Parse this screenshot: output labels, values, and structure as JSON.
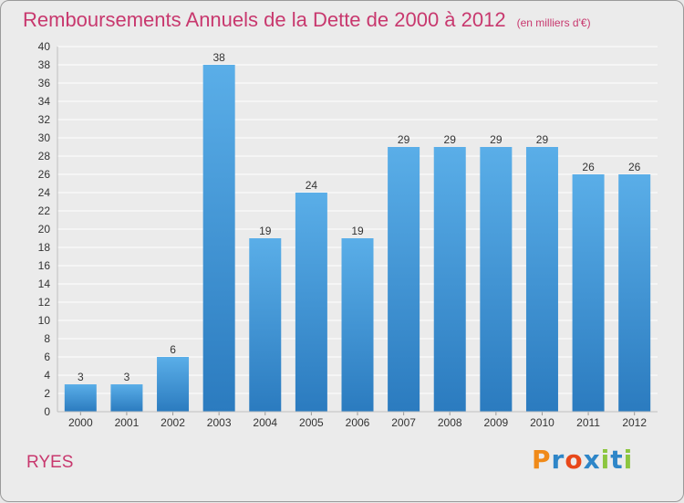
{
  "header": {
    "title": "Remboursements Annuels de la Dette de 2000 à 2012",
    "unit": "(en milliers d'€)"
  },
  "footer": {
    "commune": "RYES",
    "brand": {
      "text": "Proxiti",
      "letter_colors": [
        "#f08a18",
        "#2e86c8",
        "#e8481a",
        "#2e86c8",
        "#8cc63f",
        "#2e86c8",
        "#8cc63f"
      ]
    }
  },
  "colors": {
    "bar_top": "#5aaee8",
    "bar_bottom": "#2b7bbf",
    "grid": "#ffffff",
    "axis_text": "#333333",
    "title": "#c8386e"
  },
  "chart_data": {
    "type": "bar",
    "categories": [
      "2000",
      "2001",
      "2002",
      "2003",
      "2004",
      "2005",
      "2006",
      "2007",
      "2008",
      "2009",
      "2010",
      "2011",
      "2012"
    ],
    "values": [
      3,
      3,
      6,
      38,
      19,
      24,
      19,
      29,
      29,
      29,
      29,
      26,
      26
    ],
    "data_labels": [
      "3",
      "3",
      "6",
      "38",
      "19",
      "24",
      "19",
      "29",
      "29",
      "29",
      "29",
      "26",
      "26"
    ],
    "yticks": [
      0,
      2,
      4,
      6,
      8,
      10,
      12,
      14,
      16,
      18,
      20,
      22,
      24,
      26,
      28,
      30,
      32,
      34,
      36,
      38,
      40
    ],
    "ylim": [
      0,
      40
    ],
    "xlabel": "",
    "ylabel": "",
    "grid": true,
    "legend": "none"
  }
}
